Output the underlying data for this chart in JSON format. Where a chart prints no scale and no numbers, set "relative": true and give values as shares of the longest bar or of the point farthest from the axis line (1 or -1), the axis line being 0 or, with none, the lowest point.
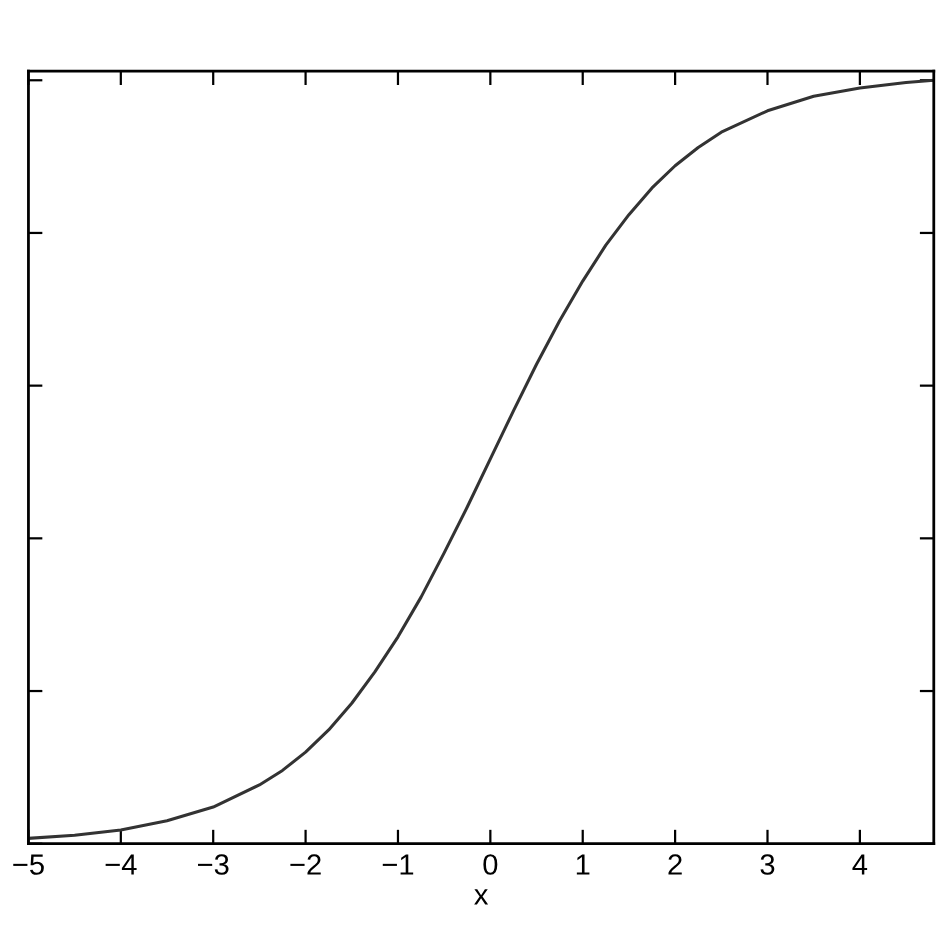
{
  "chart_data": {
    "type": "line",
    "xlabel": "x",
    "relative": true,
    "xlim": [
      -5,
      4.8
    ],
    "xticks": [
      {
        "value": -5,
        "label": "−5"
      },
      {
        "value": -4,
        "label": "−4"
      },
      {
        "value": -3,
        "label": "−3"
      },
      {
        "value": -2,
        "label": "−2"
      },
      {
        "value": -1,
        "label": "−1"
      },
      0,
      1,
      2,
      3,
      4
    ],
    "tick_labels": "x",
    "grid": false,
    "legend": false,
    "series": [
      {
        "color": "#333333",
        "x": [
          -5,
          -4.5,
          -4,
          -3.5,
          -3,
          -2.5,
          -2.25,
          -2,
          -1.75,
          -1.5,
          -1.25,
          -1,
          -0.75,
          -0.5,
          -0.25,
          0,
          0.25,
          0.5,
          0.75,
          1,
          1.25,
          1.5,
          1.75,
          2,
          2.25,
          2.5,
          3,
          3.5,
          4,
          4.5,
          4.8
        ],
        "values": [
          0.007,
          0.011,
          0.018,
          0.03,
          0.048,
          0.077,
          0.096,
          0.12,
          0.149,
          0.184,
          0.225,
          0.271,
          0.323,
          0.381,
          0.441,
          0.504,
          0.567,
          0.628,
          0.685,
          0.737,
          0.784,
          0.824,
          0.859,
          0.888,
          0.912,
          0.932,
          0.96,
          0.979,
          0.99,
          0.997,
          1.0
        ]
      }
    ]
  }
}
